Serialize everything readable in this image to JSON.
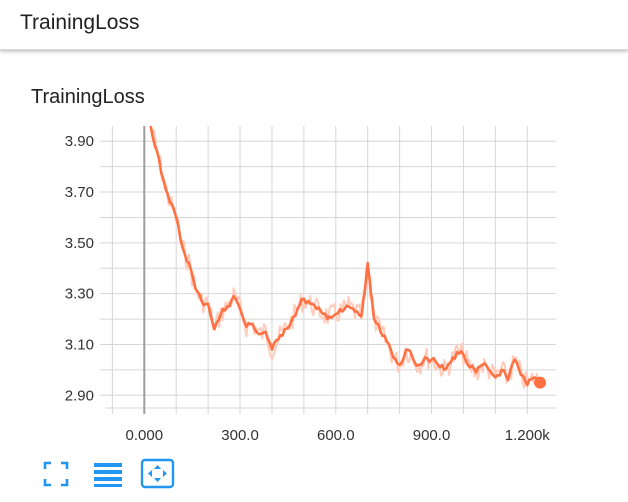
{
  "header": {
    "title": "TrainingLoss"
  },
  "card": {
    "title": "TrainingLoss"
  },
  "toolbar": {
    "icons": [
      "fullscreen-icon",
      "list-icon",
      "fit-domain-icon"
    ],
    "accent": "#2196f3"
  },
  "colors": {
    "series": "#ff7043",
    "series_raw": "#ffccbc",
    "grid": "#d6d6d6",
    "axis_text": "#333333",
    "zero_line": "#9e9e9e"
  },
  "chart_data": {
    "type": "line",
    "title": "",
    "xlabel": "",
    "ylabel": "",
    "xlim": [
      -120,
      1290
    ],
    "ylim": [
      2.85,
      3.96
    ],
    "grid": true,
    "legend": "none",
    "x_ticks": [
      0,
      300,
      600,
      900,
      1200
    ],
    "x_tick_labels": [
      "0.000",
      "300.0",
      "600.0",
      "900.0",
      "1.200k"
    ],
    "y_ticks": [
      2.9,
      3.1,
      3.3,
      3.5,
      3.7,
      3.9
    ],
    "y_tick_labels": [
      "2.90",
      "3.10",
      "3.30",
      "3.50",
      "3.70",
      "3.90"
    ],
    "series": [
      {
        "x": [
          20,
          40,
          60,
          80,
          100,
          120,
          140,
          160,
          180,
          200,
          220,
          240,
          260,
          280,
          300,
          320,
          340,
          360,
          380,
          400,
          420,
          440,
          460,
          480,
          500,
          520,
          540,
          560,
          580,
          600,
          620,
          640,
          660,
          680,
          690,
          700,
          710,
          720,
          740,
          760,
          780,
          800,
          820,
          840,
          860,
          880,
          900,
          920,
          940,
          960,
          980,
          1000,
          1020,
          1040,
          1060,
          1080,
          1100,
          1120,
          1140,
          1160,
          1180,
          1200,
          1220,
          1240
        ],
        "values": [
          3.96,
          3.86,
          3.75,
          3.66,
          3.6,
          3.48,
          3.42,
          3.32,
          3.27,
          3.26,
          3.16,
          3.22,
          3.25,
          3.29,
          3.24,
          3.17,
          3.18,
          3.14,
          3.15,
          3.08,
          3.12,
          3.16,
          3.19,
          3.24,
          3.28,
          3.26,
          3.24,
          3.22,
          3.21,
          3.22,
          3.23,
          3.25,
          3.23,
          3.21,
          3.3,
          3.42,
          3.3,
          3.2,
          3.15,
          3.11,
          3.05,
          3.02,
          3.08,
          3.05,
          3.02,
          3.05,
          3.04,
          3.02,
          3.0,
          3.03,
          3.07,
          3.06,
          3.01,
          2.99,
          3.02,
          3.0,
          2.97,
          3.0,
          2.96,
          3.04,
          2.98,
          2.94,
          2.97,
          2.95
        ]
      }
    ]
  }
}
